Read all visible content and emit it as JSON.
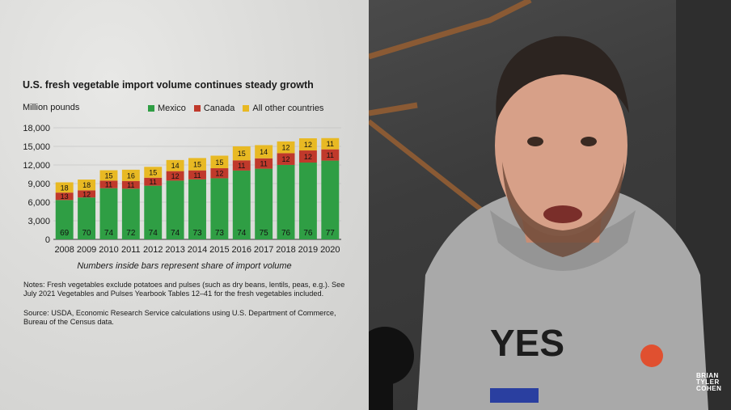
{
  "chart_data": {
    "type": "bar",
    "stacked": true,
    "title": "U.S. fresh vegetable import volume continues steady growth",
    "ylabel": "Million pounds",
    "ylim": [
      0,
      18000
    ],
    "yticks": [
      "18,000",
      "15,000",
      "12,000",
      "9,000",
      "6,000",
      "3,000",
      "0"
    ],
    "grid": true,
    "legend_position": "top",
    "categories": [
      "2008",
      "2009",
      "2010",
      "2011",
      "2012",
      "2013",
      "2014",
      "2015",
      "2016",
      "2017",
      "2018",
      "2019",
      "2020"
    ],
    "totals": [
      9200,
      9650,
      11150,
      11350,
      11700,
      12800,
      13250,
      13500,
      15000,
      15200,
      15800,
      16300,
      16500
    ],
    "series": [
      {
        "name": "Mexico",
        "color": "#2f9e44",
        "share_labels": [
          69,
          70,
          74,
          72,
          74,
          74,
          73,
          73,
          74,
          75,
          76,
          76,
          77
        ]
      },
      {
        "name": "Canada",
        "color": "#c0392b",
        "share_labels": [
          13,
          12,
          11,
          11,
          11,
          12,
          11,
          12,
          11,
          11,
          12,
          12,
          11
        ]
      },
      {
        "name": "All other countries",
        "color": "#e8b923",
        "share_labels": [
          18,
          18,
          15,
          16,
          15,
          14,
          15,
          15,
          15,
          14,
          12,
          12,
          11
        ]
      }
    ],
    "caption": "Numbers inside bars represent share of import volume"
  },
  "notes": "Notes: Fresh vegetables exclude potatoes and pulses (such as dry beans, lentils, peas, e.g.). See July 2021 Vegetables and Pulses Yearbook Tables 12–41 for the fresh vegetables included.",
  "source": "Source: USDA, Economic Research Service calculations using U.S. Department of Commerce, Bureau of the Census data.",
  "watermark": {
    "line1": "BRIAN",
    "line2": "TYLER",
    "line3": "COHEN"
  },
  "hoodie_text": "YES"
}
